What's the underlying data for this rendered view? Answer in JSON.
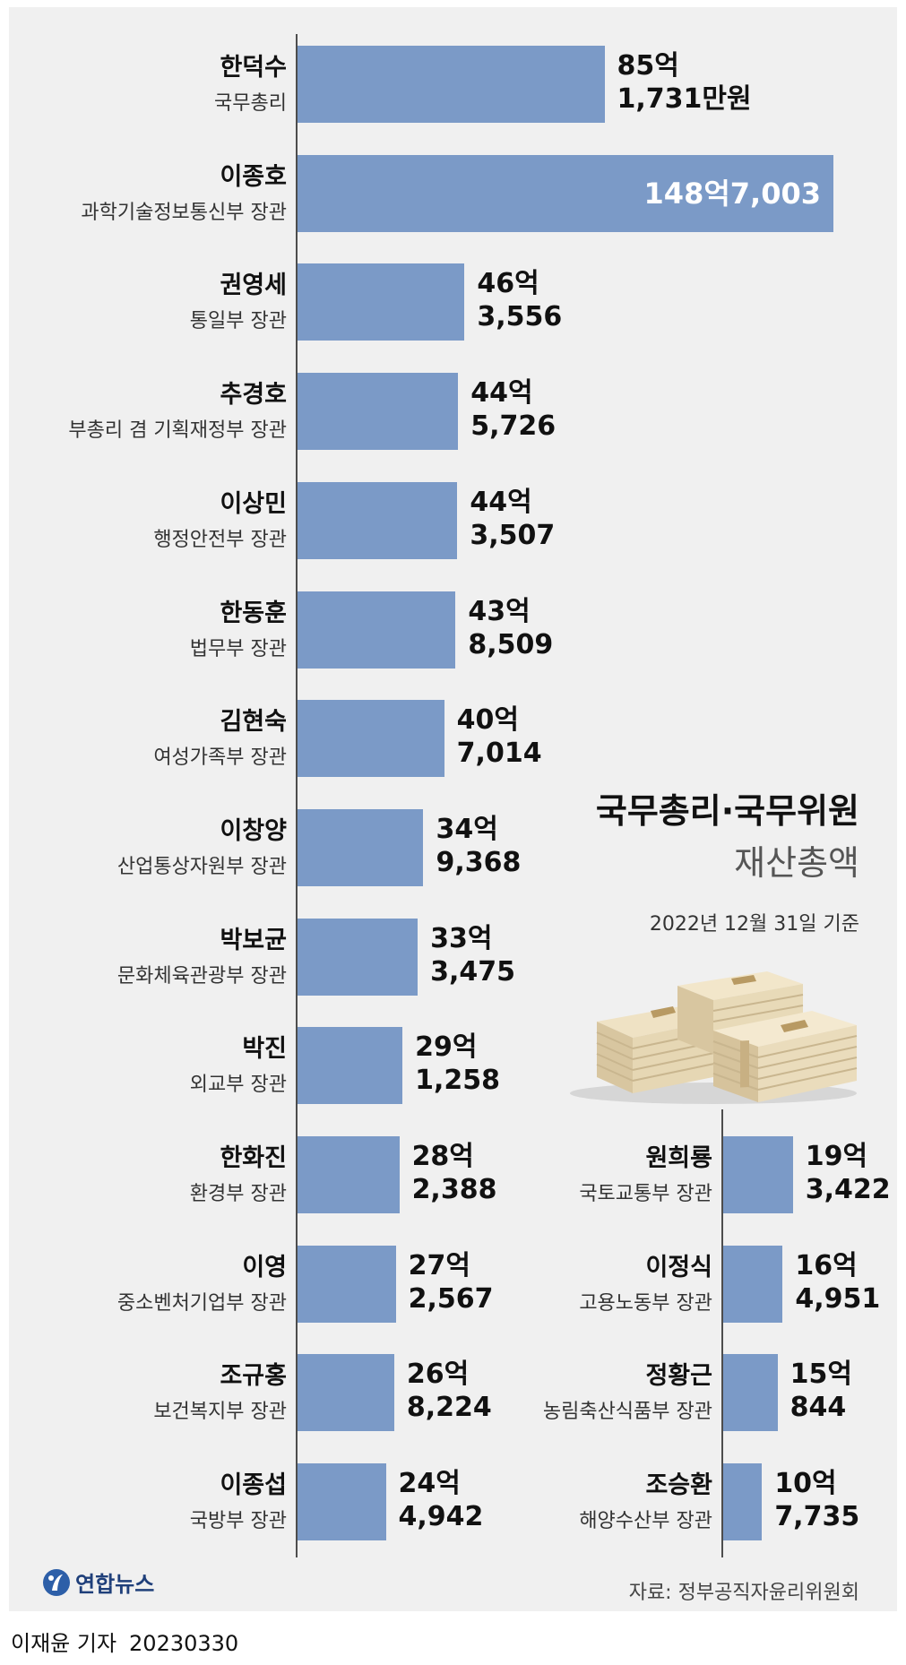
{
  "chart_data": {
    "type": "bar",
    "orientation": "horizontal",
    "title": "국무총리·국무위원",
    "subtitle": "재산총액",
    "date_note": "2022년 12월 31일 기준",
    "source": "자료: 정부공직자윤리위원회",
    "unit": "만원",
    "bar_color": "#7b9ac7",
    "series": [
      {
        "name": "한덕수",
        "position": "국무총리",
        "value": 851731,
        "label_line1": "85억",
        "label_line2": "1,731만원"
      },
      {
        "name": "이종호",
        "position": "과학기술정보통신부 장관",
        "value": 1487003,
        "label_line1": "148억7,003",
        "label_line2": ""
      },
      {
        "name": "권영세",
        "position": "통일부 장관",
        "value": 463556,
        "label_line1": "46억",
        "label_line2": "3,556"
      },
      {
        "name": "추경호",
        "position": "부총리 겸 기획재정부 장관",
        "value": 445726,
        "label_line1": "44억",
        "label_line2": "5,726"
      },
      {
        "name": "이상민",
        "position": "행정안전부 장관",
        "value": 443507,
        "label_line1": "44억",
        "label_line2": "3,507"
      },
      {
        "name": "한동훈",
        "position": "법무부 장관",
        "value": 438509,
        "label_line1": "43억",
        "label_line2": "8,509"
      },
      {
        "name": "김현숙",
        "position": "여성가족부 장관",
        "value": 407014,
        "label_line1": "40억",
        "label_line2": "7,014"
      },
      {
        "name": "이창양",
        "position": "산업통상자원부 장관",
        "value": 349368,
        "label_line1": "34억",
        "label_line2": "9,368"
      },
      {
        "name": "박보균",
        "position": "문화체육관광부 장관",
        "value": 333475,
        "label_line1": "33억",
        "label_line2": "3,475"
      },
      {
        "name": "박진",
        "position": "외교부 장관",
        "value": 291258,
        "label_line1": "29억",
        "label_line2": "1,258"
      },
      {
        "name": "한화진",
        "position": "환경부 장관",
        "value": 282388,
        "label_line1": "28억",
        "label_line2": "2,388"
      },
      {
        "name": "이영",
        "position": "중소벤처기업부 장관",
        "value": 272567,
        "label_line1": "27억",
        "label_line2": "2,567"
      },
      {
        "name": "조규홍",
        "position": "보건복지부 장관",
        "value": 268224,
        "label_line1": "26억",
        "label_line2": "8,224"
      },
      {
        "name": "이종섭",
        "position": "국방부 장관",
        "value": 244942,
        "label_line1": "24억",
        "label_line2": "4,942"
      },
      {
        "name": "원희룡",
        "position": "국토교통부 장관",
        "value": 193422,
        "label_line1": "19억",
        "label_line2": "3,422"
      },
      {
        "name": "이정식",
        "position": "고용노동부 장관",
        "value": 164951,
        "label_line1": "16억",
        "label_line2": "4,951"
      },
      {
        "name": "정황근",
        "position": "농림축산식품부 장관",
        "value": 150844,
        "label_line1": "15억",
        "label_line2": "844"
      },
      {
        "name": "조승환",
        "position": "해양수산부 장관",
        "value": 107735,
        "label_line1": "10억",
        "label_line2": "7,735"
      }
    ]
  },
  "brand": {
    "logo_text": "연합뉴스"
  },
  "credit": {
    "reporter": "이재윤 기자",
    "date": "20230330"
  }
}
